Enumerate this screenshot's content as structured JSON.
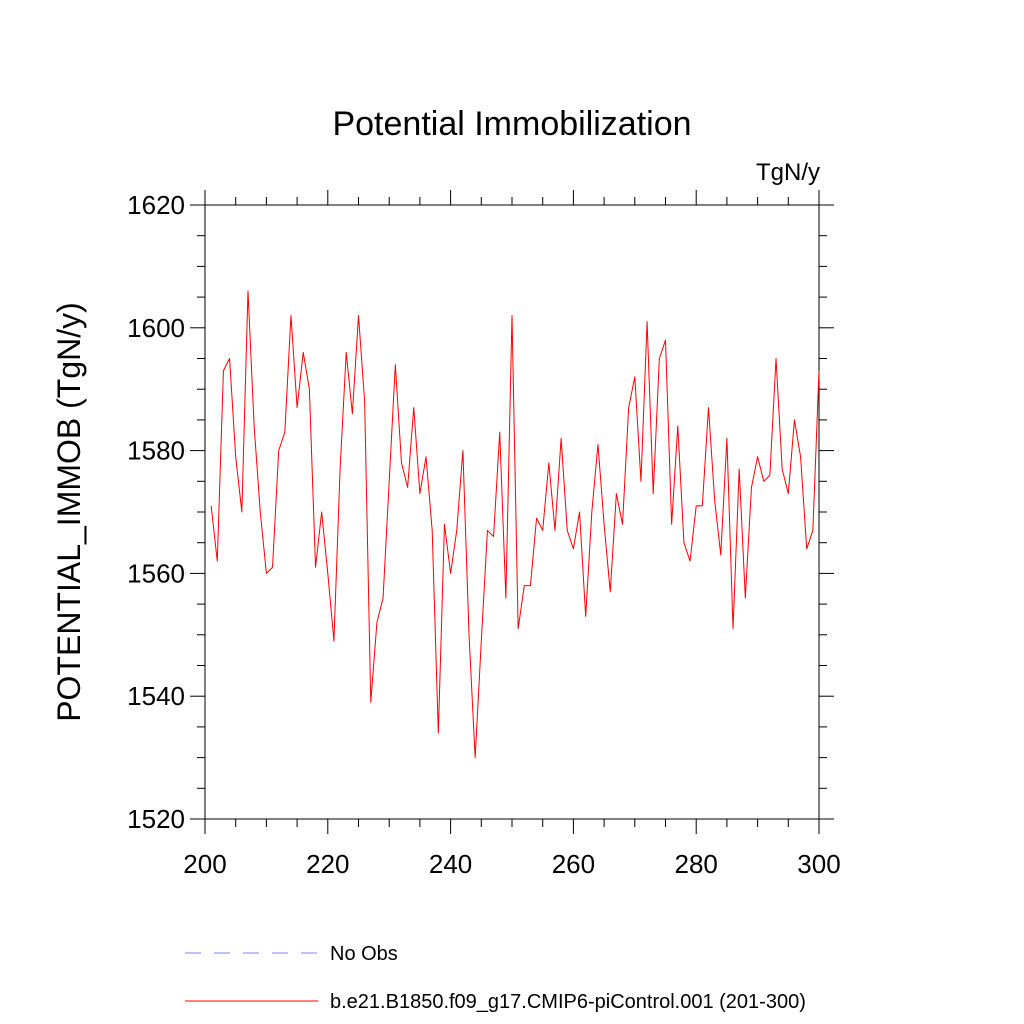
{
  "chart_data": {
    "type": "line",
    "title": "Potential Immobilization",
    "units_label": "TgN/y",
    "xlabel": "",
    "ylabel": "POTENTIAL_IMMOB  (TgN/y)",
    "xlim": [
      200,
      300
    ],
    "ylim": [
      1520,
      1620
    ],
    "xticks": [
      200,
      220,
      240,
      260,
      280,
      300
    ],
    "yticks": [
      1520,
      1540,
      1560,
      1580,
      1600,
      1620
    ],
    "x_minor_step": 5,
    "y_minor_step": 5,
    "grid": false,
    "legend": [
      {
        "label": "No Obs",
        "color": "#8080ff",
        "style": "dashed"
      },
      {
        "label": "b.e21.B1850.f09_g17.CMIP6-piControl.001 (201-300)",
        "color": "#ff0000",
        "style": "solid"
      }
    ],
    "series": [
      {
        "name": "b.e21.B1850.f09_g17.CMIP6-piControl.001 (201-300)",
        "color": "#ff0000",
        "x_start": 201,
        "x_step": 1,
        "values": [
          1571,
          1562,
          1593,
          1595,
          1579,
          1570,
          1606,
          1584,
          1570,
          1560,
          1561,
          1580,
          1583,
          1602,
          1587,
          1596,
          1590,
          1561,
          1570,
          1560,
          1549,
          1577,
          1596,
          1586,
          1602,
          1588,
          1539,
          1552,
          1556,
          1575,
          1594,
          1578,
          1574,
          1587,
          1573,
          1579,
          1567,
          1534,
          1568,
          1560,
          1567,
          1580,
          1550,
          1530,
          1549,
          1567,
          1566,
          1583,
          1556,
          1602,
          1551,
          1558,
          1558,
          1569,
          1567,
          1578,
          1567,
          1582,
          1567,
          1564,
          1570,
          1553,
          1570,
          1581,
          1568,
          1557,
          1573,
          1568,
          1587,
          1592,
          1575,
          1601,
          1573,
          1595,
          1598,
          1568,
          1584,
          1565,
          1562,
          1571,
          1571,
          1587,
          1572,
          1563,
          1582,
          1551,
          1577,
          1556,
          1574,
          1579,
          1575,
          1576,
          1595,
          1577,
          1573,
          1585,
          1579,
          1564,
          1567,
          1593
        ]
      }
    ]
  }
}
